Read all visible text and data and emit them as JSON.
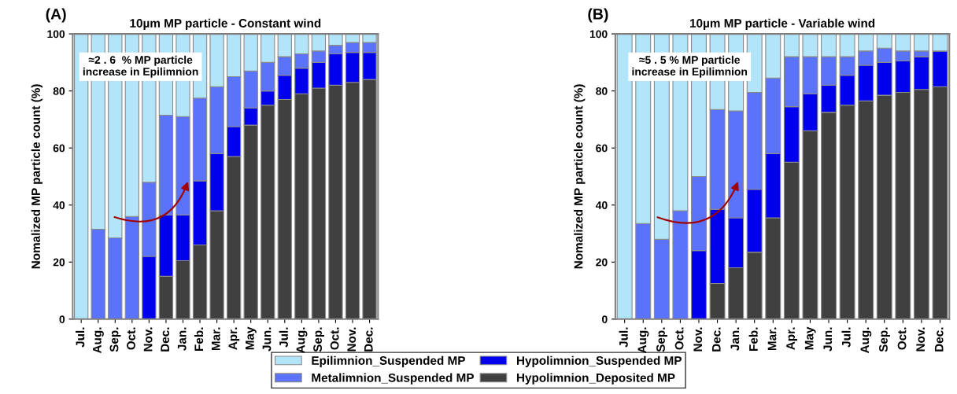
{
  "chart_data": [
    {
      "type": "bar",
      "stacked": true,
      "title": "10µm MP particle - Constant wind",
      "ylabel": "Nomalized MP particle count (%)",
      "annotations": [
        "(A)",
        "≈2 . 6  % MP particle increase in Epilimnion"
      ],
      "legend": "bottom",
      "ylim": [
        0,
        100
      ],
      "yticks": [
        0,
        20,
        40,
        60,
        80,
        100
      ],
      "grid": false,
      "categories": [
        "Jul.",
        "Aug.",
        "Sep.",
        "Oct.",
        "Nov.",
        "Dec.",
        "Jan.",
        "Feb.",
        "Mar.",
        "Apr.",
        "May",
        "Jun.",
        "Jul.",
        "Aug.",
        "Sep.",
        "Oct.",
        "Nov.",
        "Dec."
      ],
      "series": [
        {
          "name": "Hypolimnion_Deposited MP",
          "color": "#404040",
          "values": [
            0,
            0,
            0,
            0,
            0,
            15,
            20.5,
            26,
            38,
            57,
            68,
            75,
            77,
            79,
            81,
            82,
            83,
            84
          ]
        },
        {
          "name": "Hypolimnion_Suspended MP",
          "color": "#0000ee",
          "values": [
            0,
            0,
            0,
            0,
            22,
            21.5,
            16,
            22.5,
            20,
            10.5,
            6,
            5,
            8.5,
            9,
            9,
            11,
            10.5,
            9.5
          ]
        },
        {
          "name": "Metalimnion_Suspended MP",
          "color": "#5b73fa",
          "values": [
            0,
            31.5,
            28.5,
            36,
            26,
            35,
            34.5,
            29,
            23.5,
            17.5,
            13,
            10,
            6.5,
            5,
            4,
            3,
            3.5,
            3.5
          ]
        },
        {
          "name": "Epilimnion_Suspended MP",
          "color": "#b3e5fa",
          "values": [
            100,
            68.5,
            71.5,
            64,
            52,
            28.5,
            29,
            22.5,
            18.5,
            15,
            13,
            10,
            8,
            7,
            6,
            4,
            3,
            3
          ]
        }
      ]
    },
    {
      "type": "bar",
      "stacked": true,
      "title": "10µm MP particle - Variable wind",
      "ylabel": "Nomalized MP particle count (%)",
      "annotations": [
        "(B)",
        "≈5 . 5 % MP particle increase in Epilimnion"
      ],
      "legend": "bottom",
      "ylim": [
        0,
        100
      ],
      "yticks": [
        0,
        20,
        40,
        60,
        80,
        100
      ],
      "grid": false,
      "categories": [
        "Jul.",
        "Aug.",
        "Sep.",
        "Oct.",
        "Nov.",
        "Dec.",
        "Jan.",
        "Feb.",
        "Mar.",
        "Apr.",
        "May",
        "Jun.",
        "Jul.",
        "Aug.",
        "Sep.",
        "Oct.",
        "Nov.",
        "Dec."
      ],
      "series": [
        {
          "color": "#404040",
          "values": [
            0,
            0,
            0,
            0,
            0,
            12.5,
            18,
            23.5,
            35.5,
            55,
            66,
            72.5,
            75,
            76.5,
            78.5,
            79.5,
            80.5,
            81.5
          ]
        },
        {
          "color": "#0000ee",
          "values": [
            0,
            0,
            0,
            0,
            24,
            26,
            17.5,
            22,
            22.5,
            19.5,
            13,
            9.5,
            10.5,
            12.5,
            11.5,
            11,
            11.5,
            12.5
          ]
        },
        {
          "color": "#5b73fa",
          "values": [
            0,
            33.5,
            28,
            38,
            26,
            35,
            37.5,
            34,
            26.5,
            17.5,
            13,
            10,
            6.5,
            5,
            5,
            3.5,
            2,
            0
          ]
        },
        {
          "color": "#b3e5fa",
          "values": [
            100,
            66.5,
            72,
            62,
            50,
            26.5,
            27,
            20.5,
            15.5,
            8,
            8,
            8,
            8,
            6,
            5,
            6,
            6,
            6
          ]
        }
      ]
    }
  ]
}
